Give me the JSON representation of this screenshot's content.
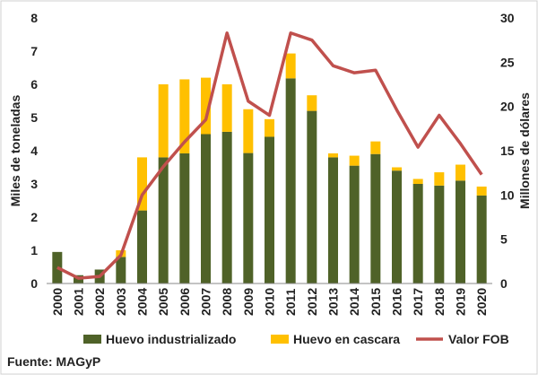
{
  "chart_data": {
    "type": "bar",
    "stacked": true,
    "categories": [
      "2000",
      "2001",
      "2002",
      "2003",
      "2004",
      "2005",
      "2006",
      "2007",
      "2008",
      "2009",
      "2010",
      "2011",
      "2012",
      "2013",
      "2014",
      "2015",
      "2016",
      "2017",
      "2018",
      "2019",
      "2020"
    ],
    "series": [
      {
        "name": "Huevo industrializado",
        "axis": "left",
        "color": "#4f6228",
        "values": [
          0.95,
          0.25,
          0.42,
          0.8,
          2.2,
          3.8,
          3.92,
          4.5,
          4.57,
          3.93,
          4.42,
          6.18,
          5.2,
          3.8,
          3.55,
          3.9,
          3.4,
          3.0,
          2.95,
          3.1,
          2.65
        ]
      },
      {
        "name": "Huevo en cascara",
        "axis": "left",
        "color": "#ffc000",
        "values": [
          0.0,
          0.0,
          0.0,
          0.2,
          1.6,
          2.2,
          2.23,
          1.7,
          1.43,
          1.32,
          0.53,
          0.75,
          0.47,
          0.12,
          0.3,
          0.38,
          0.1,
          0.15,
          0.4,
          0.48,
          0.27
        ]
      },
      {
        "name": "Valor FOB",
        "type": "line",
        "axis": "right",
        "color": "#c0504d",
        "values": [
          1.8,
          0.6,
          0.8,
          3.2,
          10.0,
          13.2,
          16.0,
          18.5,
          28.3,
          20.6,
          19.0,
          28.3,
          27.5,
          24.6,
          23.8,
          24.1,
          19.6,
          15.4,
          19.0,
          15.8,
          12.3
        ]
      }
    ],
    "ylabel": "Miles de toneladas",
    "ylim": [
      0,
      8
    ],
    "yticks": [
      "0",
      "1",
      "2",
      "3",
      "4",
      "5",
      "6",
      "7",
      "8"
    ],
    "y2label": "Millones de dólares",
    "y2lim": [
      0,
      30
    ],
    "y2ticks": [
      "0",
      "5",
      "10",
      "15",
      "20",
      "25",
      "30"
    ],
    "grid": false,
    "legend": "bottom"
  },
  "source": "Fuente: MAGyP"
}
